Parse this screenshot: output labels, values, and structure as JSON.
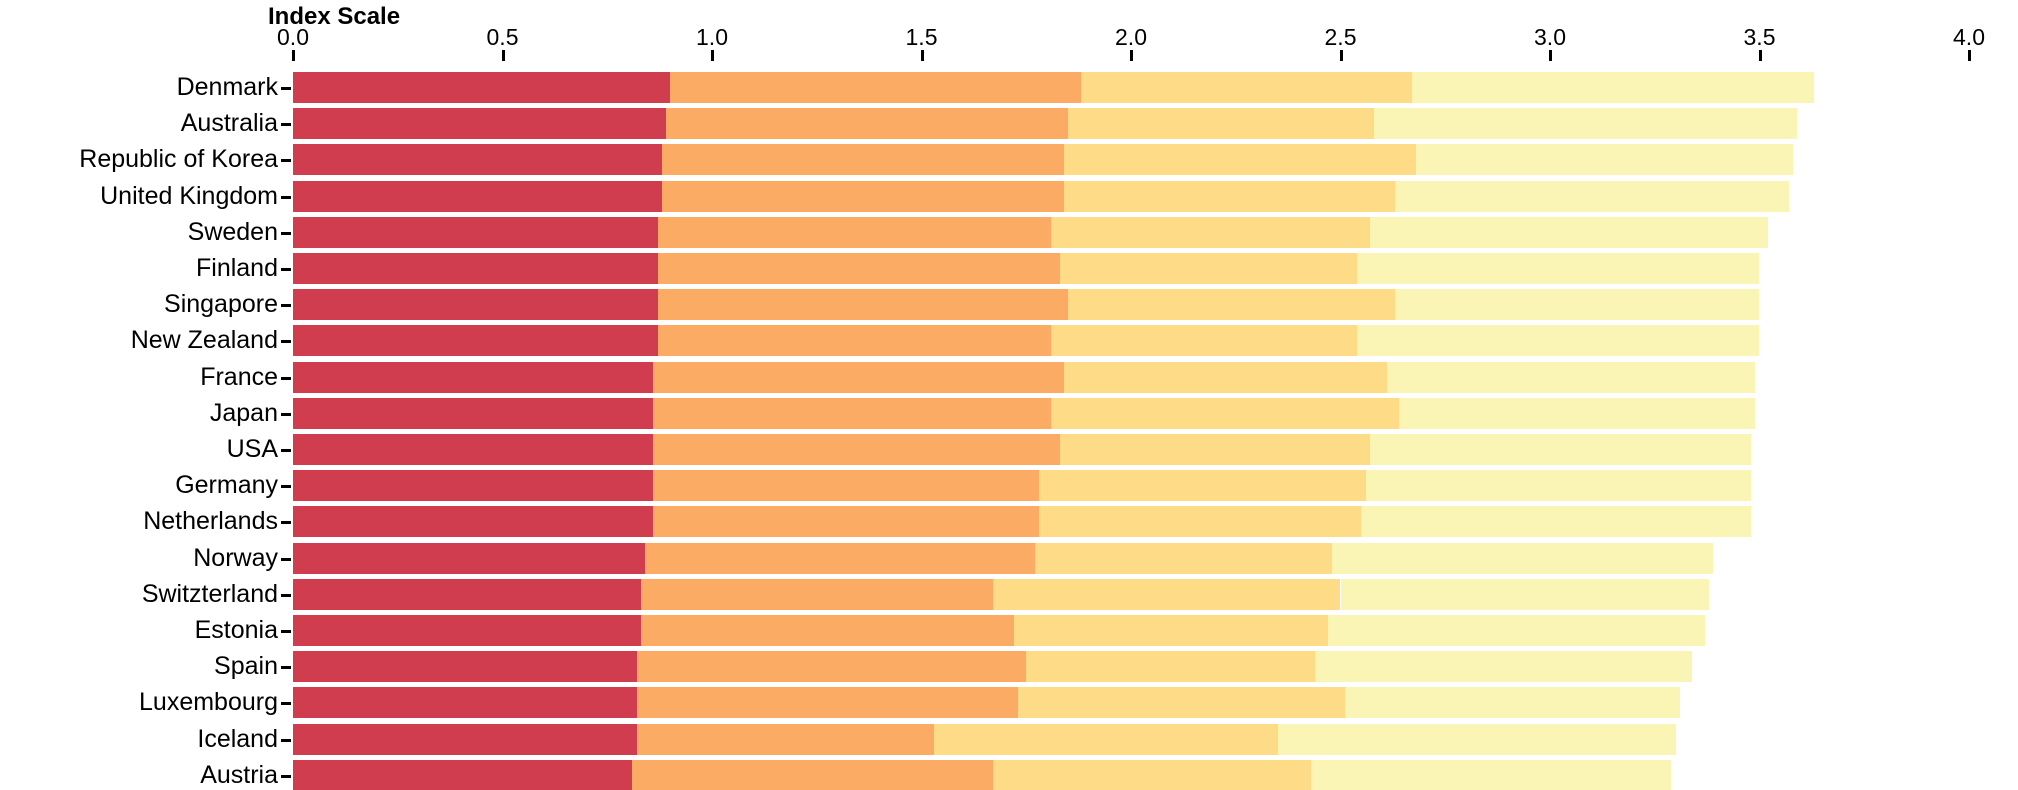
{
  "title": "Index Scale",
  "axis": {
    "min": 0,
    "max": 4,
    "step": 0.5,
    "ticks": [
      "0.0",
      "0.5",
      "1.0",
      "1.5",
      "2.0",
      "2.5",
      "3.0",
      "3.5",
      "4.0"
    ]
  },
  "colors": {
    "segment_1": "#d03d4f",
    "segment_2": "#fbab63",
    "segment_3": "#fedc87",
    "segment_4": "#faf5b5",
    "background": "#ffffff",
    "text": "#000000"
  },
  "chart_data": {
    "type": "bar",
    "orientation": "horizontal",
    "stacked": true,
    "title": "Index Scale",
    "xlabel": "Index Scale",
    "ylabel": "",
    "xlim": [
      0,
      4
    ],
    "grid": false,
    "legend": "none",
    "categories": [
      "Denmark",
      "Australia",
      "Republic of Korea",
      "United Kingdom",
      "Sweden",
      "Finland",
      "Singapore",
      "New Zealand",
      "France",
      "Japan",
      "USA",
      "Germany",
      "Netherlands",
      "Norway",
      "Switzterland",
      "Estonia",
      "Spain",
      "Luxembourg",
      "Iceland",
      "Austria"
    ],
    "series": [
      {
        "name": "segment-1-red",
        "color": "#d03d4f",
        "values": [
          0.9,
          0.89,
          0.88,
          0.88,
          0.87,
          0.87,
          0.87,
          0.87,
          0.86,
          0.86,
          0.86,
          0.86,
          0.86,
          0.84,
          0.83,
          0.83,
          0.82,
          0.82,
          0.82,
          0.81
        ]
      },
      {
        "name": "segment-2-orange",
        "color": "#fbab63",
        "values": [
          0.98,
          0.96,
          0.96,
          0.96,
          0.94,
          0.96,
          0.98,
          0.94,
          0.98,
          0.95,
          0.97,
          0.92,
          0.92,
          0.93,
          0.84,
          0.89,
          0.93,
          0.91,
          0.71,
          0.86
        ]
      },
      {
        "name": "segment-3-light-orange",
        "color": "#fedc87",
        "values": [
          0.79,
          0.73,
          0.84,
          0.79,
          0.76,
          0.71,
          0.78,
          0.73,
          0.77,
          0.83,
          0.74,
          0.78,
          0.77,
          0.71,
          0.83,
          0.75,
          0.69,
          0.78,
          0.82,
          0.76
        ]
      },
      {
        "name": "segment-4-pale-yellow",
        "color": "#faf5b5",
        "values": [
          0.96,
          1.01,
          0.9,
          0.94,
          0.95,
          0.96,
          0.87,
          0.96,
          0.88,
          0.85,
          0.91,
          0.92,
          0.93,
          0.91,
          0.88,
          0.9,
          0.9,
          0.8,
          0.95,
          0.86
        ]
      }
    ],
    "totals": [
      3.63,
      3.59,
      3.58,
      3.57,
      3.52,
      3.5,
      3.5,
      3.5,
      3.49,
      3.49,
      3.48,
      3.48,
      3.48,
      3.39,
      3.38,
      3.37,
      3.34,
      3.31,
      3.3,
      3.29
    ]
  }
}
